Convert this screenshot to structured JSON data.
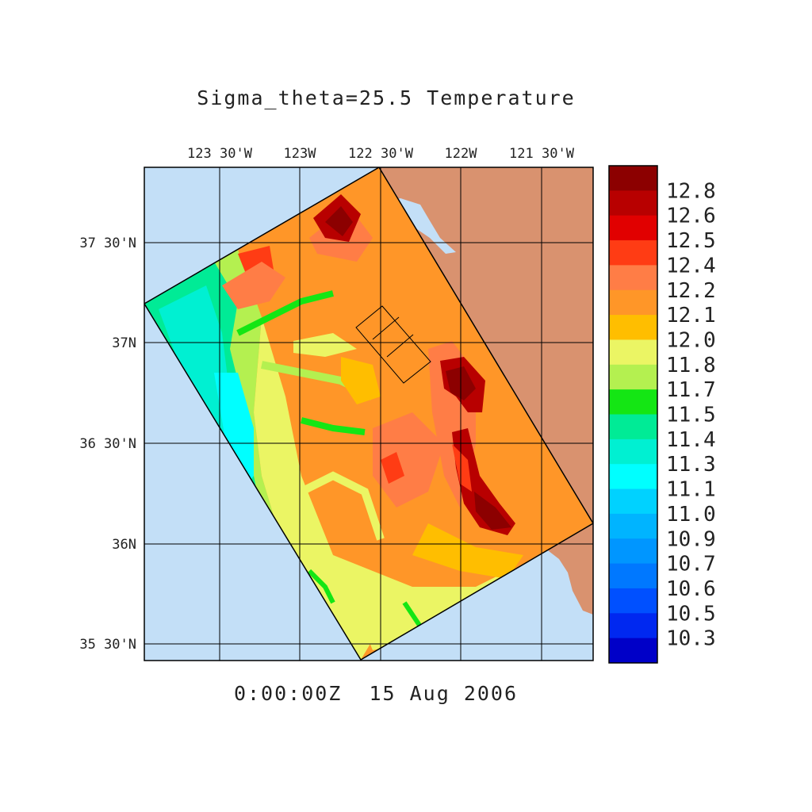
{
  "title": "Sigma_theta=25.5 Temperature",
  "timestamp": "0:00:00Z  15 Aug 2006",
  "lon_labels": [
    "123 30'W",
    "123W",
    "122 30'W",
    "122W",
    "121 30'W"
  ],
  "lat_labels": [
    "37 30'N",
    "37N",
    "36 30'N",
    "36N",
    "35 30'N"
  ],
  "colorbar": {
    "labels": [
      "12.8",
      "12.6",
      "12.5",
      "12.4",
      "12.2",
      "12.1",
      "12.0",
      "11.8",
      "11.7",
      "11.5",
      "11.4",
      "11.3",
      "11.1",
      "11.0",
      "10.9",
      "10.7",
      "10.6",
      "10.5",
      "10.3"
    ],
    "colors": [
      "#8c0000",
      "#b80000",
      "#e10000",
      "#ff3c14",
      "#ff7d46",
      "#ff9628",
      "#ffbe00",
      "#ebf564",
      "#b4f050",
      "#14e614",
      "#00eb96",
      "#00f0d2",
      "#00ffff",
      "#00d2ff",
      "#00b4ff",
      "#0096ff",
      "#0078ff",
      "#0050ff",
      "#0028f0",
      "#0000c8"
    ]
  },
  "colors": {
    "ocean": "#c3dff7",
    "land": "#d9926f",
    "frame": "#000000"
  }
}
